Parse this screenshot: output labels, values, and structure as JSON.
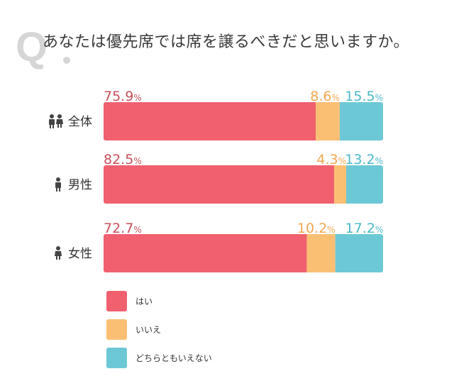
{
  "title": "あなたは優先席では席を譲るべきだと思いますか。",
  "q_mark": "Q.",
  "colors": {
    "yes": "#f0606f",
    "no": "#fbbf74",
    "neither": "#6dc8d6",
    "yes_text": "#c8505a",
    "no_text": "#f0a850",
    "neither_text": "#4ab8c8"
  },
  "legend": [
    {
      "label": "はい",
      "color": "#f0606f"
    },
    {
      "label": "いいえ",
      "color": "#fbbf74"
    },
    {
      "label": "どちらともいえない",
      "color": "#6dc8d6"
    }
  ],
  "chart_data": {
    "type": "bar",
    "stacked": true,
    "orientation": "horizontal",
    "categories": [
      "全体",
      "男性",
      "女性"
    ],
    "category_icons": [
      "couple-icon",
      "man-icon",
      "woman-icon"
    ],
    "series": [
      {
        "name": "はい",
        "values": [
          75.9,
          82.5,
          72.7
        ]
      },
      {
        "name": "いいえ",
        "values": [
          8.6,
          4.3,
          10.2
        ]
      },
      {
        "name": "どちらともいえない",
        "values": [
          15.5,
          13.2,
          17.2
        ]
      }
    ],
    "unit": "%",
    "xlim": [
      0,
      100
    ]
  }
}
